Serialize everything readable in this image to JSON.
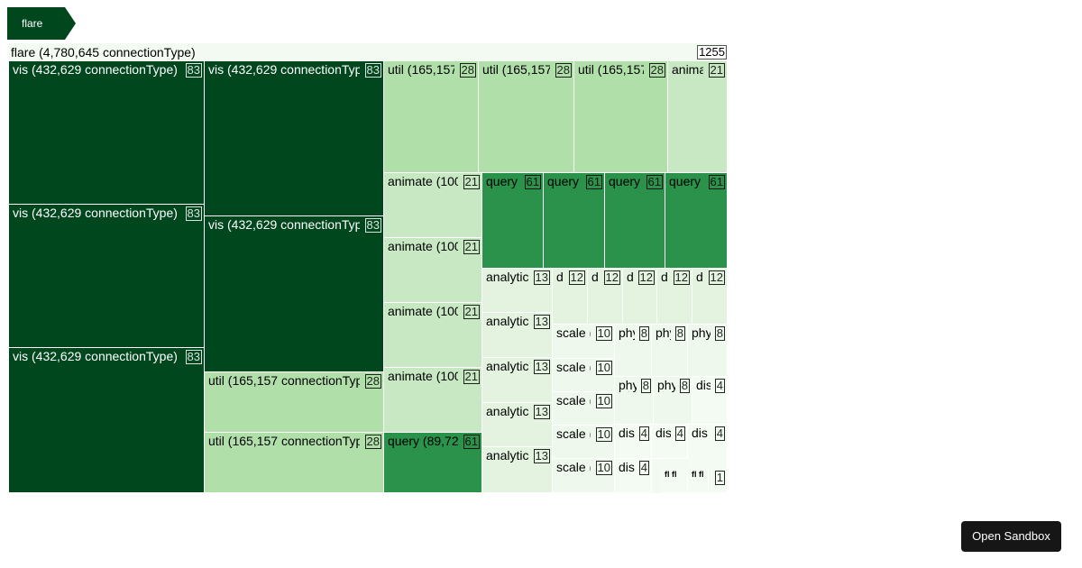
{
  "breadcrumb": {
    "label": "flare"
  },
  "root": {
    "label": "flare (4,780,645 connectionType)",
    "count": "1255"
  },
  "colors": {
    "level1": "#00471e",
    "level2": "#2a924b",
    "level3": "#b0dfaa",
    "level4": "#c8e8c3",
    "level5": "#e3f3e0",
    "level6": "#eef8ec",
    "level7": "#f4fbf2"
  },
  "cells": [
    {
      "label": "vis (432,629 connectionType)",
      "count": "83",
      "color": "level1"
    },
    {
      "label": "vis (432,629 connectionType)",
      "count": "83",
      "color": "level1"
    },
    {
      "label": "vis (432,629 connectionType)",
      "count": "83",
      "color": "level1"
    },
    {
      "label": "vis (432,629 connectionTyp",
      "count": "83",
      "color": "level1"
    },
    {
      "label": "vis (432,629 connectionTyp",
      "count": "83",
      "color": "level1"
    },
    {
      "label": "util (165,157 connectionTyp",
      "count": "28",
      "color": "level3"
    },
    {
      "label": "util (165,157 connectionTyp",
      "count": "28",
      "color": "level3"
    },
    {
      "label": "util (165,157",
      "count": "28",
      "color": "level3"
    },
    {
      "label": "util (165,157",
      "count": "28",
      "color": "level3"
    },
    {
      "label": "util (165,157",
      "count": "28",
      "color": "level3"
    },
    {
      "label": "anima",
      "count": "21",
      "color": "level4"
    },
    {
      "label": "animate (100",
      "count": "21",
      "color": "level4"
    },
    {
      "label": "animate (100",
      "count": "21",
      "color": "level4"
    },
    {
      "label": "animate (100",
      "count": "21",
      "color": "level4"
    },
    {
      "label": "animate (100",
      "count": "21",
      "color": "level4"
    },
    {
      "label": "query (89,72",
      "count": "61",
      "color": "level2"
    },
    {
      "label": "query",
      "count": "61",
      "color": "level2"
    },
    {
      "label": "query",
      "count": "61",
      "color": "level2"
    },
    {
      "label": "query",
      "count": "61",
      "color": "level2"
    },
    {
      "label": "query",
      "count": "61",
      "color": "level2"
    },
    {
      "label": "analytics",
      "count": "13",
      "color": "level5"
    },
    {
      "label": "analytics",
      "count": "13",
      "color": "level5"
    },
    {
      "label": "analytics",
      "count": "13",
      "color": "level5"
    },
    {
      "label": "analytics",
      "count": "13",
      "color": "level5"
    },
    {
      "label": "analytics",
      "count": "13",
      "color": "level5"
    },
    {
      "label": "da",
      "count": "12",
      "color": "level5"
    },
    {
      "label": "da",
      "count": "12",
      "color": "level5"
    },
    {
      "label": "da",
      "count": "12",
      "color": "level5"
    },
    {
      "label": "da",
      "count": "12",
      "color": "level5"
    },
    {
      "label": "da",
      "count": "12",
      "color": "level5"
    },
    {
      "label": "scale (",
      "count": "10",
      "color": "level6"
    },
    {
      "label": "scale (",
      "count": "10",
      "color": "level6"
    },
    {
      "label": "scale (",
      "count": "10",
      "color": "level6"
    },
    {
      "label": "scale (",
      "count": "10",
      "color": "level6"
    },
    {
      "label": "scale (",
      "count": "10",
      "color": "level6"
    },
    {
      "label": "phy",
      "count": "8",
      "color": "level6"
    },
    {
      "label": "phy",
      "count": "8",
      "color": "level6"
    },
    {
      "label": "phy",
      "count": "8",
      "color": "level6"
    },
    {
      "label": "phy",
      "count": "8",
      "color": "level6"
    },
    {
      "label": "phy",
      "count": "8",
      "color": "level6"
    },
    {
      "label": "dis",
      "count": "4",
      "color": "level7"
    },
    {
      "label": "displ",
      "count": "4",
      "color": "level7"
    },
    {
      "label": "dis",
      "count": "4",
      "color": "level7"
    },
    {
      "label": "dis",
      "count": "4",
      "color": "level7"
    },
    {
      "label": "displ",
      "count": "4",
      "color": "level7"
    },
    {
      "label": "fl fl",
      "count": "",
      "color": "level7"
    },
    {
      "label": "fl fl",
      "count": "",
      "color": "level7"
    },
    {
      "label": "",
      "count": "1",
      "color": "level7"
    }
  ],
  "sandbox_button": "Open Sandbox"
}
